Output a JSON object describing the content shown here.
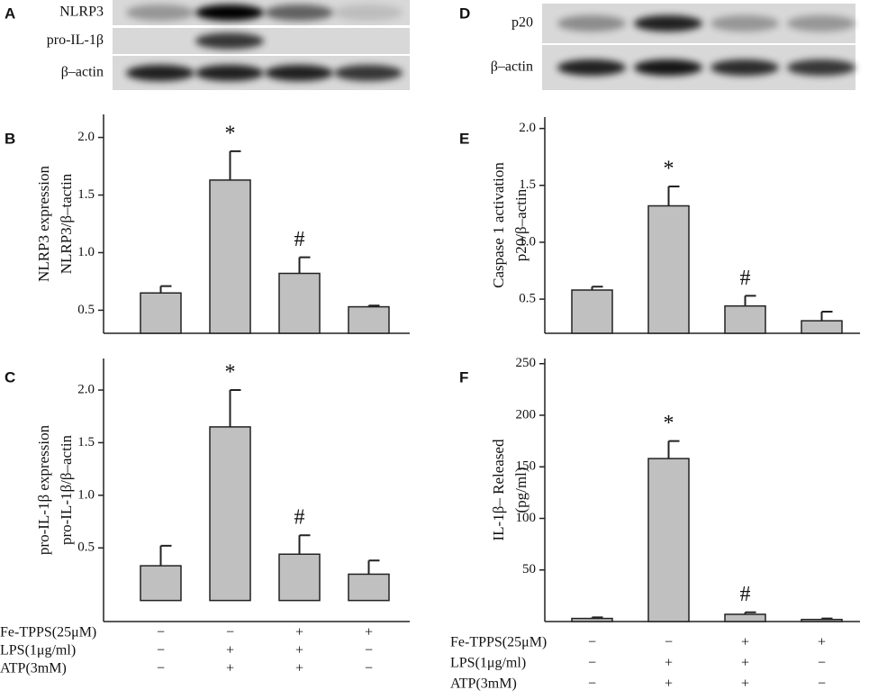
{
  "blots": [
    {
      "letter": "A",
      "rows": [
        "NLRP3",
        "pro-IL-1β",
        "β–actin"
      ]
    },
    {
      "letter": "D",
      "rows": [
        "p20",
        "β–actin"
      ]
    }
  ],
  "chart_data": [
    {
      "letter": "B",
      "type": "bar",
      "y_label": [
        "NLRP3 expression",
        "NLRP3/β–tactin"
      ],
      "values": [
        0.65,
        1.63,
        0.82,
        0.53
      ],
      "errors": [
        0.06,
        0.25,
        0.14,
        0.01
      ],
      "value_annotations": [
        null,
        "*",
        "#",
        null
      ],
      "color": "#c0c0c0",
      "ylim": [
        0.3,
        2.2
      ],
      "yticks": [
        0.5,
        {
          "value": 1,
          "label": "1.0"
        },
        1.5,
        {
          "value": 2,
          "label": "2.0"
        }
      ]
    },
    {
      "letter": "C",
      "type": "bar",
      "y_label": [
        "pro-IL-1β expression",
        "pro-IL-1β/β–actin"
      ],
      "values": [
        0.33,
        1.65,
        0.44,
        0.25
      ],
      "errors": [
        0.19,
        0.35,
        0.18,
        0.13
      ],
      "value_annotations": [
        null,
        "*",
        "#",
        null
      ],
      "color": "#c0c0c0",
      "ylim": [
        -0.2,
        2.3
      ],
      "yticks": [
        0.5,
        {
          "value": 1,
          "label": "1.0"
        },
        1.5,
        {
          "value": 2,
          "label": "2.0"
        }
      ]
    },
    {
      "letter": "E",
      "type": "bar",
      "y_label": [
        "Caspase 1 activation",
        "p20/β–actin"
      ],
      "values": [
        0.58,
        1.32,
        0.44,
        0.31
      ],
      "errors": [
        0.03,
        0.17,
        0.09,
        0.08
      ],
      "value_annotations": [
        null,
        "*",
        "#",
        null
      ],
      "color": "#c0c0c0",
      "ylim": [
        0.2,
        2.1
      ],
      "yticks": [
        0.5,
        {
          "value": 1,
          "label": "1.0"
        },
        1.5,
        {
          "value": 2,
          "label": "2.0"
        }
      ]
    },
    {
      "letter": "F",
      "type": "bar",
      "y_label": [
        "IL-1β– Released",
        "(pg/ml)"
      ],
      "values": [
        3,
        158,
        7,
        2
      ],
      "errors": [
        1,
        17,
        2,
        1
      ],
      "value_annotations": [
        null,
        "*",
        "#",
        null
      ],
      "color": "#c0c0c0",
      "ylim": [
        0,
        255
      ],
      "yticks": [
        50,
        100,
        150,
        200,
        250
      ]
    }
  ],
  "conditions": [
    {
      "label": "Fe-TPPS(25μM)",
      "signs": [
        "−",
        "−",
        "+",
        "+"
      ]
    },
    {
      "label": "LPS(1μg/ml)",
      "signs": [
        "−",
        "+",
        "+",
        "−"
      ]
    },
    {
      "label": "ATP(3mM)",
      "signs": [
        "−",
        "+",
        "+",
        "−"
      ]
    }
  ]
}
